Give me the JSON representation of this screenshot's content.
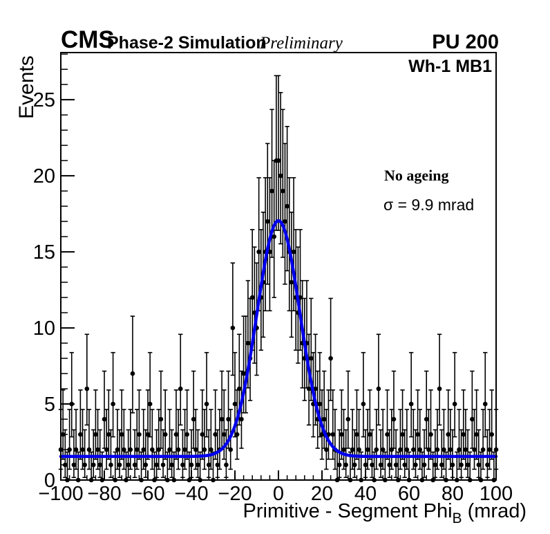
{
  "header": {
    "experiment": "CMS",
    "subtitle": "Phase-2 Simulation",
    "preliminary": "Preliminary",
    "pileup": "PU 200"
  },
  "plot": {
    "region_label": "Wh-1 MB1",
    "annotation_scenario": "No ageing",
    "annotation_sigma": "σ = 9.9 mrad"
  },
  "chart_data": {
    "type": "scatter",
    "title": "",
    "xlabel_main": "Primitive - Segment Phi",
    "xlabel_sub": "B",
    "xlabel_unit": " (mrad)",
    "ylabel": "Events",
    "xlim": [
      -100,
      100
    ],
    "ylim": [
      0,
      28.1
    ],
    "x_tick_values": [
      -100,
      -80,
      -60,
      -40,
      -20,
      0,
      20,
      40,
      60,
      80,
      100
    ],
    "x_tick_labels": [
      "−100",
      "−80",
      "−60",
      "−40",
      "−20",
      "0",
      "20",
      "40",
      "60",
      "80",
      "100"
    ],
    "y_tick_values": [
      0,
      5,
      10,
      15,
      20,
      25
    ],
    "y_tick_labels": [
      "0",
      "5",
      "10",
      "15",
      "20",
      "25"
    ],
    "x_minor_step": 4,
    "y_minor_step": 1,
    "grid": false,
    "bin_width": 1,
    "x_start": -100,
    "error_model": "poisson68",
    "marker_color": "#000000",
    "values": [
      2,
      3,
      1,
      0,
      2,
      5,
      1,
      2,
      0,
      3,
      2,
      1,
      6,
      2,
      0,
      1,
      3,
      2,
      1,
      0,
      4,
      2,
      3,
      1,
      5,
      0,
      2,
      1,
      3,
      2,
      0,
      1,
      2,
      7,
      1,
      2,
      3,
      0,
      2,
      1,
      3,
      5,
      2,
      0,
      1,
      2,
      4,
      1,
      3,
      0,
      2,
      1,
      0,
      3,
      2,
      6,
      1,
      2,
      3,
      0,
      1,
      4,
      2,
      1,
      0,
      3,
      2,
      5,
      1,
      2,
      0,
      3,
      1,
      2,
      4,
      3,
      1,
      4,
      2,
      10,
      5,
      3,
      6,
      4,
      7,
      7,
      9,
      8,
      12,
      11,
      10,
      15,
      12,
      13,
      15,
      17,
      15,
      19,
      16,
      21,
      21,
      20,
      19,
      17,
      18,
      15,
      13,
      15,
      12,
      11,
      12,
      9,
      8,
      9,
      6,
      8,
      5,
      6,
      4,
      5,
      3,
      4,
      2,
      3,
      8,
      3,
      2,
      0,
      1,
      3,
      2,
      1,
      4,
      0,
      2,
      1,
      3,
      2,
      0,
      5,
      1,
      2,
      3,
      1,
      0,
      2,
      6,
      1,
      2,
      0,
      3,
      1,
      2,
      4,
      1,
      0,
      2,
      3,
      1,
      2,
      0,
      5,
      2,
      1,
      3,
      2,
      0,
      1,
      4,
      2,
      3,
      0,
      1,
      2,
      6,
      1,
      2,
      0,
      3,
      2,
      1,
      5,
      0,
      2,
      1,
      3,
      2,
      1,
      0,
      4,
      2,
      3,
      1,
      0,
      2,
      5,
      1,
      2,
      3,
      0,
      2
    ],
    "fit": {
      "model": "gaussian + constant",
      "amplitude": 15.5,
      "mean": 0,
      "sigma": 9.9,
      "baseline": 1.55,
      "color": "#0000ee",
      "line_width": 4.5
    }
  }
}
